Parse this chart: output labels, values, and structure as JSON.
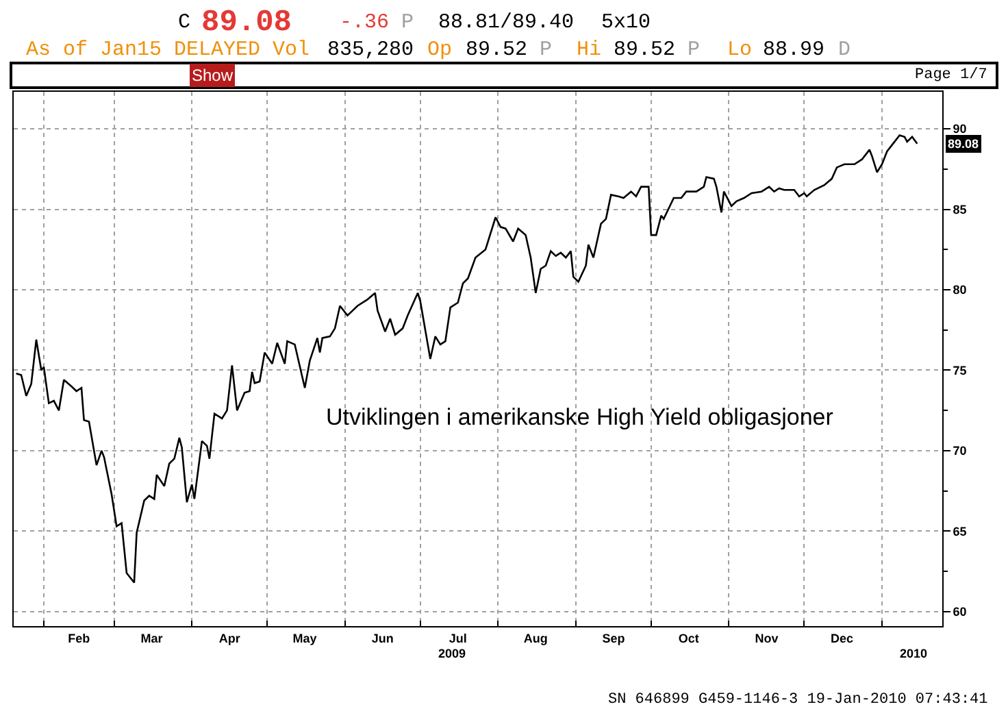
{
  "chart_data": {
    "type": "line",
    "x": [
      "2009-01-21",
      "2009-01-23",
      "2009-01-25",
      "2009-01-27",
      "2009-01-29",
      "2009-01-31",
      "2009-02-01",
      "2009-02-03",
      "2009-02-05",
      "2009-02-07",
      "2009-02-09",
      "2009-02-12",
      "2009-02-14",
      "2009-02-16",
      "2009-02-17",
      "2009-02-19",
      "2009-02-22",
      "2009-02-24",
      "2009-02-25",
      "2009-02-28",
      "2009-03-02",
      "2009-03-04",
      "2009-03-06",
      "2009-03-09",
      "2009-03-10",
      "2009-03-13",
      "2009-03-15",
      "2009-03-17",
      "2009-03-18",
      "2009-03-21",
      "2009-03-23",
      "2009-03-25",
      "2009-03-27",
      "2009-03-28",
      "2009-03-30",
      "2009-04-01",
      "2009-04-02",
      "2009-04-05",
      "2009-04-07",
      "2009-04-08",
      "2009-04-10",
      "2009-04-13",
      "2009-04-15",
      "2009-04-17",
      "2009-04-19",
      "2009-04-22",
      "2009-04-24",
      "2009-04-25",
      "2009-04-26",
      "2009-04-28",
      "2009-04-30",
      "2009-05-03",
      "2009-05-05",
      "2009-05-08",
      "2009-05-09",
      "2009-05-12",
      "2009-05-16",
      "2009-05-18",
      "2009-05-21",
      "2009-05-22",
      "2009-05-23",
      "2009-05-26",
      "2009-05-28",
      "2009-05-30",
      "2009-06-02",
      "2009-06-06",
      "2009-06-10",
      "2009-06-13",
      "2009-06-14",
      "2009-06-17",
      "2009-06-19",
      "2009-06-21",
      "2009-06-24",
      "2009-06-26",
      "2009-06-30",
      "2009-07-01",
      "2009-07-05",
      "2009-07-07",
      "2009-07-09",
      "2009-07-11",
      "2009-07-13",
      "2009-07-16",
      "2009-07-18",
      "2009-07-20",
      "2009-07-23",
      "2009-07-27",
      "2009-07-31",
      "2009-08-02",
      "2009-08-04",
      "2009-08-07",
      "2009-08-09",
      "2009-08-12",
      "2009-08-14",
      "2009-08-16",
      "2009-08-18",
      "2009-08-20",
      "2009-08-22",
      "2009-08-24",
      "2009-08-26",
      "2009-08-28",
      "2009-08-30",
      "2009-08-31",
      "2009-09-02",
      "2009-09-05",
      "2009-09-06",
      "2009-09-08",
      "2009-09-11",
      "2009-09-13",
      "2009-09-15",
      "2009-09-18",
      "2009-09-20",
      "2009-09-23",
      "2009-09-25",
      "2009-09-27",
      "2009-09-30",
      "2009-10-01",
      "2009-10-03",
      "2009-10-05",
      "2009-10-06",
      "2009-10-10",
      "2009-10-13",
      "2009-10-15",
      "2009-10-19",
      "2009-10-22",
      "2009-10-23",
      "2009-10-26",
      "2009-10-27",
      "2009-10-29",
      "2009-10-30",
      "2009-11-02",
      "2009-11-04",
      "2009-11-07",
      "2009-11-10",
      "2009-11-14",
      "2009-11-17",
      "2009-11-19",
      "2009-11-21",
      "2009-11-23",
      "2009-11-27",
      "2009-11-29",
      "2009-12-01",
      "2009-12-02",
      "2009-12-05",
      "2009-12-09",
      "2009-12-12",
      "2009-12-14",
      "2009-12-17",
      "2009-12-21",
      "2009-12-24",
      "2009-12-27",
      "2009-12-28",
      "2009-12-30",
      "2010-01-01",
      "2010-01-03",
      "2010-01-06",
      "2010-01-08",
      "2010-01-10",
      "2010-01-11",
      "2010-01-13",
      "2010-01-15"
    ],
    "series": [
      {
        "color": "#000000",
        "values": [
          74.8,
          74.7,
          73.4,
          74.15,
          76.9,
          75.0,
          75.2,
          72.95,
          73.1,
          72.5,
          74.4,
          74.0,
          73.7,
          73.9,
          71.9,
          71.8,
          69.1,
          70.0,
          69.6,
          67.3,
          65.3,
          65.5,
          62.4,
          61.8,
          64.9,
          66.9,
          67.2,
          67.0,
          68.5,
          67.8,
          69.2,
          69.5,
          70.8,
          70.2,
          66.8,
          67.9,
          67.0,
          70.6,
          70.3,
          69.5,
          72.3,
          72.0,
          72.5,
          75.3,
          72.5,
          73.6,
          73.7,
          74.9,
          74.2,
          74.3,
          76.1,
          75.4,
          76.7,
          75.4,
          76.8,
          76.6,
          73.9,
          75.6,
          77.0,
          76.1,
          77.0,
          77.1,
          77.6,
          79.0,
          78.4,
          79.0,
          79.4,
          79.8,
          78.7,
          77.4,
          78.2,
          77.2,
          77.6,
          78.4,
          79.8,
          79.3,
          75.7,
          77.1,
          76.6,
          76.8,
          78.9,
          79.2,
          80.4,
          80.7,
          82.0,
          82.5,
          84.5,
          83.9,
          83.8,
          83.0,
          83.8,
          83.4,
          82.0,
          79.8,
          81.3,
          81.5,
          82.4,
          82.1,
          82.3,
          82.0,
          82.4,
          80.8,
          80.5,
          81.5,
          82.8,
          82.0,
          84.1,
          84.4,
          85.9,
          85.8,
          85.7,
          86.1,
          85.8,
          86.4,
          86.4,
          83.4,
          83.4,
          84.6,
          84.4,
          85.7,
          85.7,
          86.1,
          86.1,
          86.4,
          87.0,
          86.9,
          86.4,
          84.8,
          86.1,
          85.2,
          85.5,
          85.7,
          86.0,
          86.1,
          86.4,
          86.1,
          86.3,
          86.2,
          86.2,
          85.8,
          86.0,
          85.8,
          86.2,
          86.5,
          86.9,
          87.6,
          87.8,
          87.8,
          88.1,
          88.7,
          88.3,
          87.3,
          87.8,
          88.6,
          89.2,
          89.6,
          89.5,
          89.2,
          89.5,
          89.08
        ]
      }
    ],
    "xlim": [
      "2009-01-20",
      "2010-01-25"
    ],
    "xticks": [
      {
        "value": "2009-02-01",
        "label": null
      },
      {
        "value": "2009-02-15",
        "label": "Feb"
      },
      {
        "value": "2009-03-01",
        "label": null
      },
      {
        "value": "2009-03-16",
        "label": "Mar"
      },
      {
        "value": "2009-04-01",
        "label": null
      },
      {
        "value": "2009-04-16",
        "label": "Apr"
      },
      {
        "value": "2009-05-01",
        "label": null
      },
      {
        "value": "2009-05-16",
        "label": "May"
      },
      {
        "value": "2009-06-01",
        "label": null
      },
      {
        "value": "2009-06-16",
        "label": "Jun"
      },
      {
        "value": "2009-07-01",
        "label": null
      },
      {
        "value": "2009-07-16",
        "label": "Jul"
      },
      {
        "value": "2009-08-01",
        "label": null
      },
      {
        "value": "2009-08-16",
        "label": "Aug"
      },
      {
        "value": "2009-09-01",
        "label": null
      },
      {
        "value": "2009-09-16",
        "label": "Sep"
      },
      {
        "value": "2009-10-01",
        "label": null
      },
      {
        "value": "2009-10-16",
        "label": "Oct"
      },
      {
        "value": "2009-11-01",
        "label": null
      },
      {
        "value": "2009-11-16",
        "label": "Nov"
      },
      {
        "value": "2009-12-01",
        "label": null
      },
      {
        "value": "2009-12-16",
        "label": "Dec"
      },
      {
        "value": "2010-01-01",
        "label": null
      }
    ],
    "ylim": [
      59.1,
      92.3
    ],
    "yticks": [
      60,
      {
        "value": 62.5,
        "label": null
      },
      65,
      {
        "value": 67.5,
        "label": null
      },
      70,
      {
        "value": 72.5,
        "label": null
      },
      75,
      {
        "value": 77.5,
        "label": null
      },
      80,
      {
        "value": 82.5,
        "label": null
      },
      85,
      {
        "value": 87.5,
        "label": null
      },
      90
    ],
    "grid": true,
    "annotations": [
      "C",
      "89.08",
      "-.36",
      "P",
      "88.81/89.40",
      "5x10",
      "As of Jan15 DELAYED Vol",
      "835,280",
      "Op",
      "89.52",
      "P",
      "Hi",
      "89.52",
      "P",
      "Lo",
      "88.99",
      "D",
      "Show",
      "Page 1/7",
      "Utviklingen i amerikanske High Yield obligasjoner",
      "2009",
      "2010",
      "SN 646899 G459-1146-3 19-Jan-2010 07:43:41",
      "89.08"
    ]
  }
}
